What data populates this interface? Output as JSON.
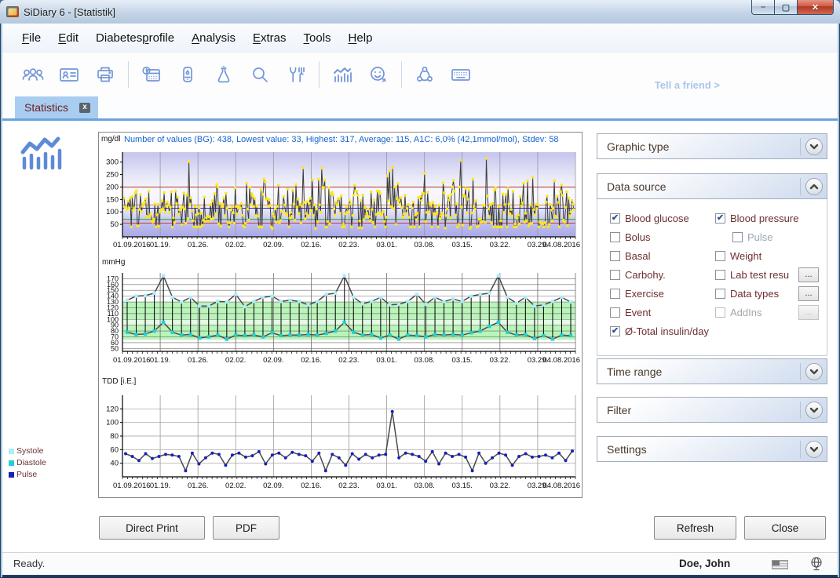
{
  "window": {
    "title": "SiDiary 6 - [Statistik]"
  },
  "menu": {
    "items": [
      {
        "label": "File",
        "underline": 0
      },
      {
        "label": "Edit",
        "underline": 0
      },
      {
        "label": "Diabetesprofile",
        "underline": 8
      },
      {
        "label": "Analysis",
        "underline": 0
      },
      {
        "label": "Extras",
        "underline": 0
      },
      {
        "label": "Tools",
        "underline": 0
      },
      {
        "label": "Help",
        "underline": 0
      }
    ]
  },
  "toolbar": {
    "icons": [
      "users",
      "contact-card",
      "printer",
      "calendar-clock",
      "glucose-meter",
      "lab-flask",
      "search",
      "nutrition",
      "statistics",
      "smiley-export",
      "share",
      "keyboard"
    ],
    "tell_a_friend": "Tell a friend >"
  },
  "tabs": [
    {
      "label": "Statistics"
    }
  ],
  "legend": {
    "items": [
      {
        "label": "Systole",
        "color": "#a9eef8"
      },
      {
        "label": "Diastole",
        "color": "#22cfd4"
      },
      {
        "label": "Pulse",
        "color": "#1522bb"
      }
    ]
  },
  "x_axis": {
    "labels": [
      "01.09.2016",
      "01.19.",
      "01.26.",
      "02.02.",
      "02.09.",
      "02.16.",
      "02.23.",
      "03.01.",
      "03.08.",
      "03.15.",
      "03.22.",
      "03.29.",
      "04.08.2016"
    ]
  },
  "chart_data": [
    {
      "id": "blood-glucose",
      "type": "line",
      "unit": "mg/dl",
      "header": "Number of values (BG): 438, Lowest value: 33, Highest: 317, Average: 115, A1C: 6,0% (42,1mmol/mol), Stdev: 58",
      "ylim": [
        0,
        340
      ],
      "yticks": [
        50,
        100,
        150,
        200,
        250,
        300
      ],
      "ref_lines": [
        {
          "value": 200,
          "color": "#b23434"
        },
        {
          "value": 128,
          "color": "#e08a42"
        },
        {
          "value": 115,
          "color": "#2b2bc8"
        },
        {
          "value": 70,
          "color": "#2f9e2f"
        },
        {
          "value": 55,
          "color": "#cc3a3a"
        }
      ],
      "marker_color": "#ffe61a",
      "line_color": "#3c3c3c",
      "generate": {
        "count": 438,
        "min": 33,
        "max": 317,
        "avg": 115,
        "stdev": 58,
        "seed": 13
      }
    },
    {
      "id": "blood-pressure",
      "type": "line",
      "unit": "mmHg",
      "ylim": [
        45,
        180
      ],
      "yticks": [
        50,
        60,
        70,
        80,
        90,
        100,
        110,
        120,
        130,
        140,
        150,
        160,
        170
      ],
      "bands": [
        {
          "from": 100,
          "to": 130,
          "color": "#b9f4b9"
        },
        {
          "from": 90,
          "to": 100,
          "color": "#e3fbe3"
        },
        {
          "from": 65,
          "to": 90,
          "color": "#b9f4b9"
        }
      ],
      "series": [
        {
          "name": "Systole",
          "marker": "#a9eef8",
          "line": "#4a4a4a",
          "values": [
            133,
            140,
            141,
            145,
            175,
            138,
            130,
            138,
            123,
            123,
            131,
            130,
            143,
            122,
            131,
            138,
            140,
            131,
            133,
            131,
            125,
            131,
            143,
            145,
            175,
            138,
            127,
            131,
            138,
            125,
            126,
            131,
            143,
            126,
            138,
            131,
            135,
            131,
            140,
            143,
            145,
            175,
            138,
            128,
            138,
            123,
            125,
            131,
            138,
            130
          ]
        },
        {
          "name": "Diastole",
          "marker": "#22cfd4",
          "line": "#4a4a4a",
          "values": [
            78,
            74,
            75,
            80,
            95,
            78,
            73,
            74,
            68,
            70,
            73,
            66,
            73,
            72,
            73,
            70,
            77,
            72,
            73,
            73,
            74,
            73,
            76,
            80,
            95,
            78,
            73,
            74,
            68,
            73,
            66,
            73,
            72,
            70,
            74,
            73,
            74,
            73,
            77,
            80,
            88,
            95,
            78,
            73,
            74,
            67,
            72,
            66,
            73,
            72
          ]
        }
      ],
      "connectors": true
    },
    {
      "id": "total-daily-dose",
      "type": "line",
      "unit": "TDD [i.E.]",
      "ylim": [
        20,
        140
      ],
      "yticks": [
        40,
        60,
        80,
        100,
        120
      ],
      "series": [
        {
          "name": "TDD",
          "marker": "#1522bb",
          "line": "#4a4a4a",
          "values": [
            54,
            50,
            44,
            54,
            47,
            50,
            53,
            52,
            50,
            29,
            55,
            39,
            48,
            55,
            53,
            37,
            52,
            55,
            49,
            51,
            57,
            39,
            52,
            55,
            48,
            56,
            53,
            51,
            43,
            55,
            29,
            53,
            48,
            37,
            54,
            46,
            53,
            48,
            52,
            53,
            116,
            48,
            55,
            53,
            50,
            43,
            57,
            39,
            55,
            50,
            53,
            49,
            29,
            55,
            40,
            48,
            55,
            52,
            37,
            50,
            54,
            49,
            50,
            52,
            48,
            55,
            44,
            58
          ]
        }
      ]
    }
  ],
  "panel": {
    "sections": [
      {
        "label": "Graphic type",
        "state": "collapsed"
      },
      {
        "label": "Data source",
        "state": "expanded"
      },
      {
        "label": "Time range",
        "state": "collapsed"
      },
      {
        "label": "Filter",
        "state": "collapsed"
      },
      {
        "label": "Settings",
        "state": "collapsed"
      }
    ],
    "data_source": {
      "left": [
        {
          "label": "Blood glucose",
          "checked": true
        },
        {
          "label": "Bolus"
        },
        {
          "label": "Basal"
        },
        {
          "label": "Carbohy."
        },
        {
          "label": "Exercise"
        },
        {
          "label": "Event"
        },
        {
          "label": "Ø-Total insulin/day",
          "checked": true
        }
      ],
      "right": [
        {
          "label": "Blood pressure",
          "checked": true
        },
        {
          "label": "Pulse",
          "indent": true,
          "muted": true
        },
        {
          "label": "Weight"
        },
        {
          "label": "Lab test resu",
          "more": true
        },
        {
          "label": "Data types",
          "more": true
        },
        {
          "label": "AddIns",
          "disabled": true,
          "more": true
        }
      ],
      "more_label": "..."
    }
  },
  "footer": {
    "direct_print": "Direct Print",
    "pdf": "PDF",
    "refresh": "Refresh",
    "close": "Close"
  },
  "statusbar": {
    "status": "Ready.",
    "user": "Doe, John"
  }
}
